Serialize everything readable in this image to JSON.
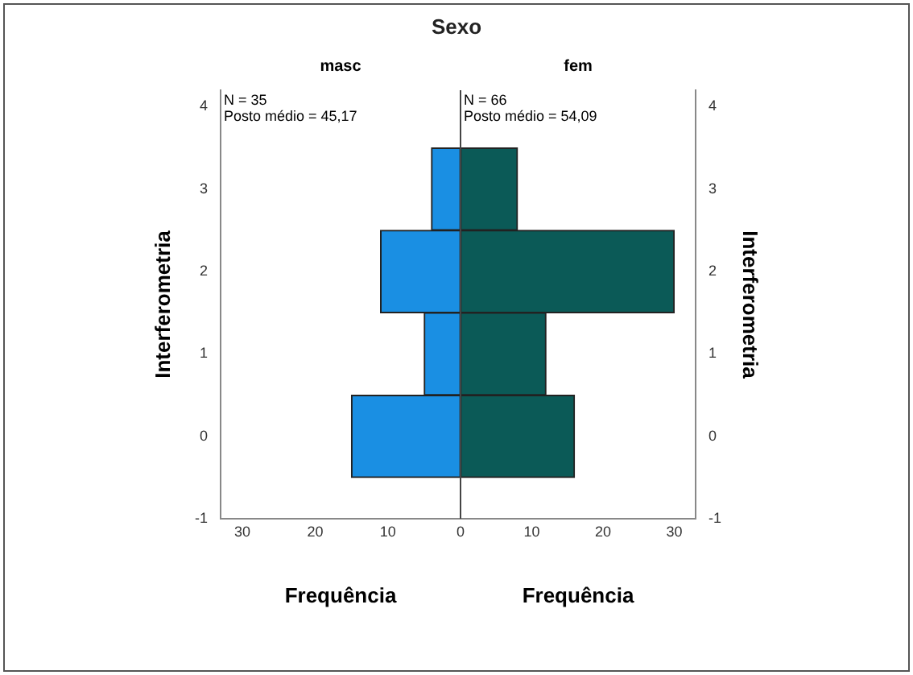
{
  "chart_data": [
    {
      "type": "histogram",
      "title": "Sexo",
      "subtitle": "masc",
      "orientation": "horizontal",
      "bins": [
        -0.5,
        0.5,
        1.5,
        2.5,
        3.5
      ],
      "values": [
        15,
        5,
        11,
        4
      ],
      "color": "#1a8fe3",
      "xlim": [
        33,
        0
      ],
      "xticks": [
        30,
        20,
        10,
        0
      ],
      "ylim": [
        -1,
        4.2
      ],
      "yticks": [
        -1,
        0,
        1,
        2,
        3,
        4
      ],
      "xlabel": "Frequência",
      "ylabel": "Interferometria",
      "grid": false,
      "annotations": [
        "N = 35",
        "Posto médio = 45,17"
      ]
    },
    {
      "type": "histogram",
      "subtitle": "fem",
      "orientation": "horizontal",
      "bins": [
        -0.5,
        0.5,
        1.5,
        2.5,
        3.5
      ],
      "values": [
        16,
        12,
        30,
        8
      ],
      "color": "#0b5a57",
      "xlim": [
        0,
        33
      ],
      "xticks": [
        10,
        20,
        30
      ],
      "ylim": [
        -1,
        4.2
      ],
      "yticks": [
        -1,
        0,
        1,
        2,
        3,
        4
      ],
      "xlabel": "Frequência",
      "ylabel": "Interferometria",
      "grid": false,
      "annotations": [
        "N = 66",
        "Posto médio = 54,09"
      ]
    }
  ]
}
